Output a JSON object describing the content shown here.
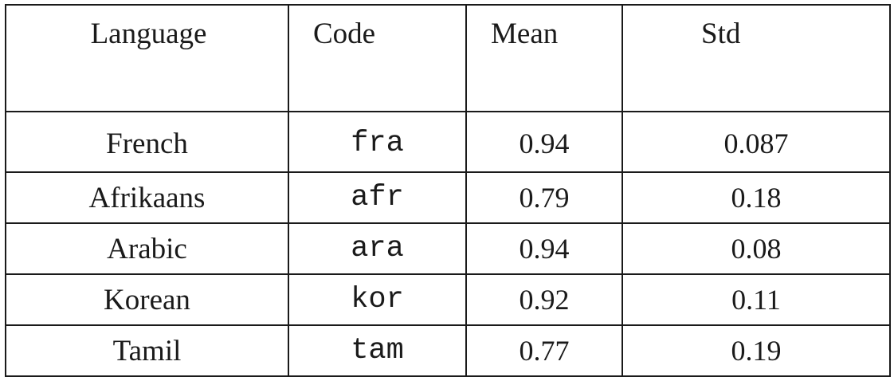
{
  "table": {
    "headers": {
      "language": "Language",
      "code": "Code",
      "mean": "Mean",
      "std": "Std"
    },
    "rows": [
      {
        "language": "French",
        "code": "fra",
        "mean": "0.94",
        "std": "0.087"
      },
      {
        "language": "Afrikaans",
        "code": "afr",
        "mean": "0.79",
        "std": "0.18"
      },
      {
        "language": "Arabic",
        "code": "ara",
        "mean": "0.94",
        "std": "0.08"
      },
      {
        "language": "Korean",
        "code": "kor",
        "mean": "0.92",
        "std": "0.11"
      },
      {
        "language": "Tamil",
        "code": "tam",
        "mean": "0.77",
        "std": "0.19"
      }
    ]
  }
}
